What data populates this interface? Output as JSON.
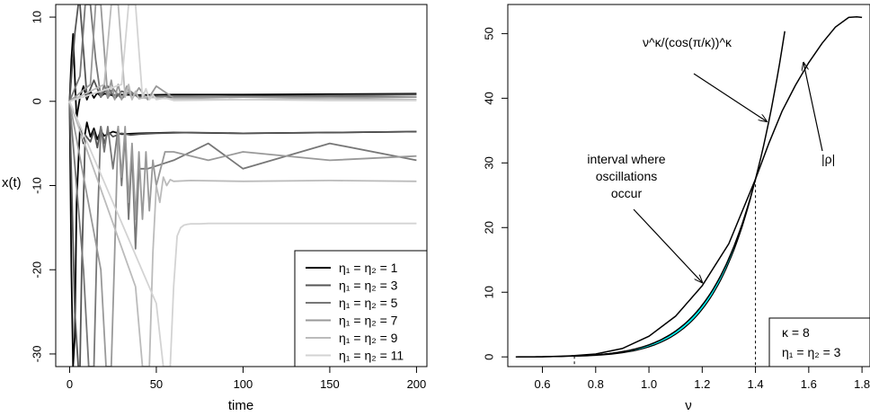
{
  "chart_data": [
    {
      "type": "line",
      "xlabel": "time",
      "ylabel": "x(t)",
      "xlim": [
        -8,
        206
      ],
      "ylim": [
        -31.5,
        11.5
      ],
      "xticks": [
        "0",
        "50",
        "100",
        "150",
        "200"
      ],
      "yticks": [
        "-30",
        "-20",
        "-10",
        "0",
        "10"
      ],
      "legend_position": "bottom-right",
      "series": [
        {
          "name": "η₁ = η₂ = 1",
          "color": "#000000",
          "upper": {
            "x": [
              0,
              1,
              2,
              3,
              4,
              6,
              8,
              10,
              12,
              14,
              16,
              18,
              20,
              25,
              30,
              40,
              60,
              100,
              150,
              200
            ],
            "y": [
              0,
              5,
              8,
              3,
              -2,
              0.5,
              1.8,
              0.2,
              1.2,
              0.4,
              1,
              0.6,
              0.9,
              0.7,
              0.8,
              0.75,
              0.8,
              0.8,
              0.85,
              0.9
            ]
          },
          "lower": {
            "x": [
              0,
              1,
              2,
              3,
              4,
              6,
              8,
              10,
              12,
              14,
              16,
              18,
              20,
              25,
              30,
              40,
              60,
              100,
              150,
              200
            ],
            "y": [
              0,
              -20,
              -31.5,
              -28,
              -12,
              -3,
              -5,
              -2.5,
              -4.2,
              -3.2,
              -4.5,
              -3.5,
              -4.1,
              -3.6,
              -3.9,
              -3.8,
              -3.7,
              -3.8,
              -3.7,
              -3.6
            ]
          }
        },
        {
          "name": "η₁ = η₂ = 3",
          "color": "#555555",
          "upper": {
            "x": [
              0,
              3,
              5,
              6,
              8,
              10,
              14,
              18,
              22,
              26,
              30,
              40,
              60,
              100,
              150,
              200
            ],
            "y": [
              0,
              8,
              11.5,
              11.5,
              6,
              0.5,
              2.5,
              0.5,
              1.8,
              0.3,
              1.2,
              0.6,
              0.5,
              0.6,
              0.7,
              0.8
            ]
          },
          "lower": {
            "x": [
              0,
              3,
              5,
              6,
              7,
              9,
              12,
              14,
              16,
              18,
              20,
              22,
              25,
              30,
              35,
              40,
              50,
              70,
              100,
              150,
              200
            ],
            "y": [
              0,
              -25,
              -31.5,
              -31.5,
              -20,
              -4,
              -4.8,
              -3.5,
              -5.5,
              -3,
              -5,
              -3.6,
              -4.2,
              -3.8,
              -4,
              -3.9,
              -3.8,
              -3.7,
              -3.8,
              -3.7,
              -3.6
            ]
          }
        },
        {
          "name": "η₁ = η₂ = 5",
          "color": "#777777",
          "upper": {
            "x": [
              0,
              6,
              9,
              12,
              15,
              18,
              20,
              22,
              25,
              30,
              35,
              40,
              60,
              100,
              150,
              200
            ],
            "y": [
              0,
              3,
              11.5,
              11.5,
              5,
              0.5,
              2,
              0.4,
              1.5,
              0.3,
              1.2,
              0.4,
              0.6,
              0.5,
              0.6,
              0.5
            ]
          },
          "lower": {
            "x": [
              0,
              8,
              11,
              14,
              16,
              18,
              20,
              22,
              25,
              28,
              30,
              32,
              34,
              36,
              38,
              40,
              45,
              60,
              80,
              100,
              150,
              200
            ],
            "y": [
              0,
              -20,
              -31.5,
              -31.5,
              -15,
              -3,
              -6,
              -3,
              -8,
              -3,
              -10,
              -4,
              -14,
              -6,
              -17.5,
              -8,
              -8,
              -7,
              -5,
              -8,
              -5,
              -7
            ]
          }
        },
        {
          "name": "η₁ = η₂ = 7",
          "color": "#999999",
          "upper": {
            "x": [
              0,
              12,
              15,
              18,
              20,
              22,
              24,
              26,
              28,
              30,
              33,
              36,
              40,
              45,
              50,
              60,
              100,
              150,
              200
            ],
            "y": [
              0,
              2,
              11.5,
              11.5,
              6,
              0.5,
              2.5,
              0.2,
              2,
              0.2,
              1.8,
              0.3,
              1.6,
              0.2,
              1.8,
              0.4,
              0.5,
              0.4,
              0.5
            ]
          },
          "lower": {
            "x": [
              0,
              18,
              21,
              24,
              26,
              28,
              30,
              32,
              34,
              36,
              38,
              40,
              42,
              44,
              46,
              48,
              50,
              55,
              60,
              80,
              100,
              150,
              200
            ],
            "y": [
              0,
              -20,
              -31.5,
              -31.5,
              -18,
              -3,
              -9,
              -3,
              -12,
              -5,
              -14,
              -6,
              -14,
              -6,
              -13,
              -7,
              -10,
              -6,
              -6,
              -7,
              -6,
              -7,
              -6.5
            ]
          }
        },
        {
          "name": "η₁ = η₂ = 9",
          "color": "#bbbbbb",
          "upper": {
            "x": [
              0,
              20,
              24,
              28,
              30,
              32,
              34,
              36,
              38,
              40,
              45,
              50,
              60,
              100,
              150,
              200
            ],
            "y": [
              0,
              2,
              11.5,
              11.5,
              6,
              0.5,
              2,
              0.2,
              1.2,
              0.3,
              0.6,
              0.4,
              0.3,
              0.2,
              0.3,
              0.2
            ]
          },
          "lower": {
            "x": [
              0,
              38,
              42,
              46,
              48,
              50,
              52,
              54,
              56,
              58,
              60,
              70,
              100,
              150,
              200
            ],
            "y": [
              0,
              -22,
              -31.5,
              -31.5,
              -18,
              -10,
              -12,
              -9,
              -10,
              -9.3,
              -9.5,
              -9.4,
              -9.5,
              -9.4,
              -9.5
            ]
          }
        },
        {
          "name": "η₁ = η₂ = 11",
          "color": "#d3d3d3",
          "upper": {
            "x": [
              0,
              30,
              34,
              38,
              40,
              42,
              44,
              46,
              48,
              50,
              55,
              60,
              100,
              150,
              200
            ],
            "y": [
              0,
              2,
              11.5,
              11.5,
              6,
              0.5,
              1.5,
              0.2,
              0.8,
              0.2,
              0.4,
              0.1,
              0.2,
              0.1,
              0.1
            ]
          },
          "lower": {
            "x": [
              0,
              50,
              54,
              58,
              60,
              62,
              64,
              66,
              68,
              70,
              75,
              80,
              100,
              150,
              200
            ],
            "y": [
              0,
              -24,
              -31.5,
              -31.5,
              -22,
              -16,
              -15,
              -14.7,
              -14.6,
              -14.55,
              -14.55,
              -14.5,
              -14.5,
              -14.5,
              -14.5
            ]
          }
        }
      ]
    },
    {
      "type": "area",
      "xlabel": "ν",
      "ylabel": "",
      "xlim": [
        0.47,
        1.83
      ],
      "ylim": [
        -1.5,
        54.5
      ],
      "xticks": [
        "0.6",
        "0.8",
        "1.0",
        "1.2",
        "1.4",
        "1.6",
        "1.8"
      ],
      "yticks": [
        "0",
        "10",
        "20",
        "30",
        "40",
        "50"
      ],
      "kappa": 8,
      "fill_color": "#00ffff",
      "fill_interval": [
        0.72,
        1.4
      ],
      "dashed_verticals": [
        0.72,
        1.4
      ],
      "rho_curve": {
        "x": [
          0.5,
          0.6,
          0.7,
          0.72,
          0.8,
          0.9,
          1.0,
          1.1,
          1.2,
          1.3,
          1.4,
          1.45,
          1.5,
          1.55,
          1.6,
          1.65,
          1.7,
          1.75,
          1.78,
          1.8
        ],
        "y": [
          0,
          0.02,
          0.15,
          0.2,
          0.45,
          1.3,
          3.2,
          6.3,
          11,
          17.5,
          27.5,
          33,
          38,
          42,
          45.5,
          48.5,
          51,
          52.5,
          52.6,
          52.5
        ]
      },
      "bound_curve_exponent": 8,
      "bound_curve_scale": 0.0956,
      "annotations": {
        "bound_label": "ν^κ/(cos(π/κ))^κ",
        "rho_label": "|ρ|",
        "interval_label": [
          "interval where",
          "oscillations",
          "occur"
        ]
      },
      "legend": [
        "κ = 8",
        "η₁ = η₂ = 3"
      ],
      "legend_position": "bottom-right"
    }
  ]
}
